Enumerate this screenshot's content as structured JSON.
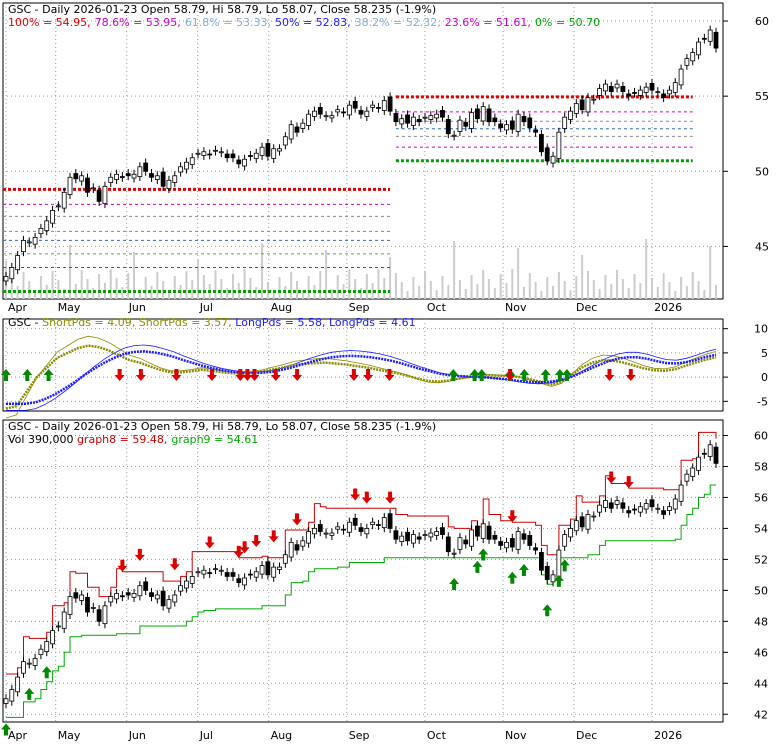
{
  "colors": {
    "background": "#ffffff",
    "grid": "#999999",
    "fib_red": "#e00000",
    "fib_green": "#00a000",
    "fib_magenta": "#cc00cc",
    "fib_blue": "#3366cc",
    "fib_gray": "#888888",
    "short_pds": "#8b8b00",
    "long_pds": "#1a1aff",
    "arrow_up": "#008800",
    "arrow_down": "#dd0000",
    "stop_red": "#cc0000",
    "stop_green": "#00aa00",
    "volume": "#cccccc"
  },
  "chart_data": [
    {
      "type": "candlestick",
      "title": "GSC - Daily 2026-01-23 Open 58.79, Hi 58.79, Lo 58.07, Close 58.235 (-1.9%)",
      "legend": [
        {
          "text": "100% = 54.95,",
          "color": "#e00000"
        },
        {
          "text": "78.6% = 53.95,",
          "color": "#cc00cc"
        },
        {
          "text": "61.8% = 53.33,",
          "color": "#88aacc"
        },
        {
          "text": "50% = 52.83,",
          "color": "#1a1aff"
        },
        {
          "text": "38.2% = 52.32,",
          "color": "#88aacc"
        },
        {
          "text": "23.6% = 51.61,",
          "color": "#cc00cc"
        },
        {
          "text": "0% = 50.70",
          "color": "#00a000"
        }
      ],
      "x_labels": [
        "Apr",
        "May",
        "Jun",
        "Jul",
        "Aug",
        "Sep",
        "Oct",
        "Nov",
        "Dec",
        "2026"
      ],
      "y_ticks": [
        45,
        50,
        55,
        60
      ],
      "ylim": [
        41.5,
        61.2
      ],
      "fib_levels": [
        54.95,
        53.95,
        53.33,
        52.83,
        52.32,
        51.61,
        50.7
      ],
      "prior_fib_levels": [
        48.8,
        42.0
      ],
      "close": [
        43.0,
        43.6,
        44.4,
        45.4,
        45.3,
        45.6,
        46.2,
        46.7,
        47.4,
        47.7,
        48.6,
        49.6,
        49.5,
        49.7,
        48.6,
        48.9,
        48.0,
        49.0,
        49.6,
        49.8,
        49.6,
        49.7,
        49.8,
        50.3,
        50.0,
        49.6,
        49.7,
        49.0,
        49.4,
        49.7,
        50.3,
        50.6,
        50.9,
        51.2,
        51.3,
        51.1,
        51.4,
        51.3,
        50.9,
        50.9,
        50.5,
        50.8,
        51.0,
        51.2,
        51.6,
        51.0,
        51.5,
        51.5,
        52.3,
        53.1,
        52.6,
        53.2,
        53.8,
        54.0,
        53.8,
        53.7,
        53.7,
        54.1,
        53.9,
        54.4,
        54.2,
        53.8,
        54.0,
        54.4,
        54.2,
        54.7,
        54.0,
        53.3,
        53.5,
        53.2,
        53.6,
        53.3,
        53.6,
        53.7,
        53.8,
        53.6,
        52.5,
        52.4,
        53.4,
        53.0,
        53.9,
        53.5,
        54.3,
        53.3,
        53.3,
        52.9,
        53.1,
        52.8,
        53.8,
        53.3,
        52.9,
        52.6,
        51.3,
        50.7,
        51.0,
        52.6,
        53.6,
        54.0,
        54.5,
        54.1,
        54.9,
        54.8,
        55.5,
        55.8,
        55.3,
        55.8,
        55.3,
        55.0,
        55.2,
        55.4,
        55.6,
        55.4,
        55.3,
        54.9,
        55.4,
        55.9,
        56.8,
        57.5,
        57.9,
        58.6,
        58.8,
        59.4,
        58.2
      ],
      "short_pds_values": [
        4.09,
        3.57
      ],
      "long_pds_values": [
        5.58,
        4.61
      ]
    },
    {
      "type": "line",
      "title": "GSC - ShortPds = 4.09, ShortPds = 3.57, LongPds = 5.58, LongPds = 4.61",
      "series": [
        {
          "name": "ShortPds",
          "value": 4.09
        },
        {
          "name": "ShortPds",
          "value": 3.57
        },
        {
          "name": "LongPds",
          "value": 5.58
        },
        {
          "name": "LongPds",
          "value": 4.61
        }
      ],
      "y_ticks": [
        -5,
        0,
        5,
        10
      ],
      "ylim": [
        -7,
        12
      ],
      "short_line": [
        -6.5,
        -6,
        -3,
        0,
        2,
        4,
        5,
        6,
        6.5,
        6.2,
        5.5,
        4.5,
        3.5,
        3.0,
        2.2,
        1.5,
        1.0,
        1.0,
        1.2,
        1.5,
        1.3,
        1.0,
        0.8,
        0.7,
        0.9,
        1.2,
        1.6,
        2.0,
        2.5,
        2.7,
        2.9,
        3.0,
        2.8,
        2.6,
        2.3,
        2.0,
        1.6,
        1.2,
        0.8,
        0.3,
        -0.3,
        -0.8,
        -0.9,
        -0.7,
        -0.3,
        0.0,
        0.3,
        0.4,
        0.3,
        0.2,
        0.0,
        -0.5,
        -1.0,
        -1.5,
        -1.0,
        0.5,
        2.0,
        3.0,
        3.5,
        3.4,
        3.0,
        2.4,
        1.8,
        1.4,
        1.3,
        1.6,
        2.3,
        3.0,
        3.6,
        4.09
      ],
      "long_line": [
        -5.5,
        -5.5,
        -5.5,
        -5.2,
        -4.5,
        -3.5,
        -2.3,
        -1.0,
        0.5,
        1.8,
        3.0,
        4.0,
        4.8,
        5.2,
        5.3,
        5.1,
        4.7,
        4.2,
        3.5,
        2.9,
        2.3,
        1.8,
        1.4,
        1.1,
        0.9,
        0.8,
        0.9,
        1.1,
        1.5,
        2.0,
        2.6,
        3.2,
        3.7,
        4.1,
        4.3,
        4.4,
        4.3,
        4.1,
        3.8,
        3.4,
        2.9,
        2.3,
        1.7,
        1.2,
        0.7,
        0.4,
        0.2,
        0.1,
        0.0,
        -0.1,
        -0.3,
        -0.5,
        -0.8,
        -1.0,
        -1.1,
        -1.0,
        -0.7,
        -0.2,
        0.6,
        1.5,
        2.4,
        3.2,
        3.8,
        4.1,
        4.1,
        3.8,
        3.3,
        2.9,
        2.8,
        3.1,
        3.6,
        4.2,
        4.61
      ],
      "up_arrows": [
        0.0,
        0.03,
        0.06,
        0.63,
        0.66,
        0.67,
        0.71,
        0.73,
        0.76,
        0.78,
        0.79
      ],
      "down_arrows": [
        0.16,
        0.19,
        0.24,
        0.29,
        0.33,
        0.34,
        0.35,
        0.38,
        0.41,
        0.49,
        0.51,
        0.54,
        0.71,
        0.85,
        0.88
      ]
    },
    {
      "type": "candlestick",
      "title": "GSC - Daily 2026-01-23 Open 58.79, Hi 58.79, Lo 58.07, Close 58.235 (-1.9%)",
      "volume_text": "Vol 390,000",
      "legend": [
        {
          "text": "graph8 = 59.48,",
          "color": "#cc0000"
        },
        {
          "text": "graph9 = 54.61",
          "color": "#00aa00"
        }
      ],
      "x_labels": [
        "Apr",
        "May",
        "Jun",
        "Jul",
        "Aug",
        "Sep",
        "Oct",
        "Nov",
        "Dec",
        "2026"
      ],
      "y_ticks": [
        42,
        44,
        46,
        48,
        50,
        52,
        54,
        56,
        58,
        60
      ],
      "ylim": [
        41.5,
        61.0
      ]
    }
  ]
}
